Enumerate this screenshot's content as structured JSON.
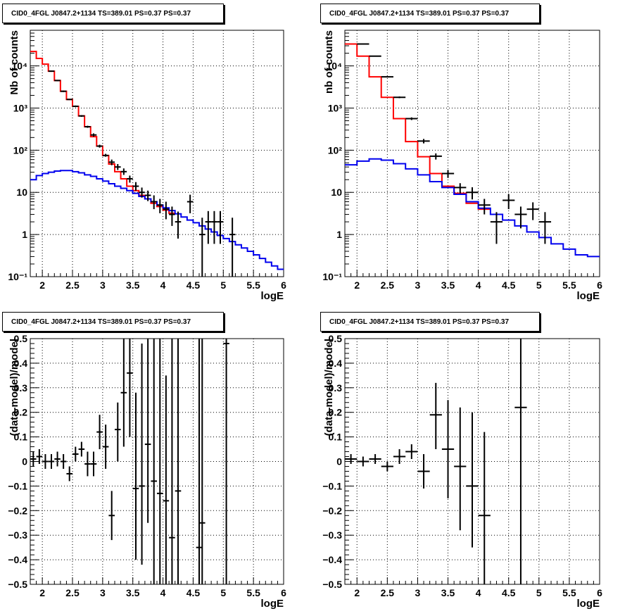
{
  "chart_data": [
    {
      "type": "histogram-step-log",
      "title": "CID0_4FGL J0847.2+1134 TS=389.01 PS=0.37 PS=0.37",
      "xlabel": "logE",
      "ylabel": "Nb of counts",
      "xlim": [
        1.8,
        6
      ],
      "ylim": [
        0.1,
        70000
      ],
      "yscale": "log",
      "grid": true,
      "x_ticks": [
        2,
        2.5,
        3,
        3.5,
        4,
        4.5,
        5,
        5.5,
        6
      ],
      "x_tick_labels": [
        "2",
        "2.5",
        "3",
        "3.5",
        "4",
        "4.5",
        "5",
        "5.5",
        "6"
      ],
      "y_ticks": [
        0.1,
        1,
        10,
        100,
        1000,
        10000
      ],
      "y_tick_labels": [
        "10⁻¹",
        "1",
        "10",
        "10²",
        "10³",
        "10⁴"
      ],
      "bin_edges": [
        1.8,
        1.9,
        2.0,
        2.1,
        2.2,
        2.3,
        2.4,
        2.5,
        2.6,
        2.7,
        2.8,
        2.9,
        3.0,
        3.1,
        3.2,
        3.3,
        3.4,
        3.5,
        3.6,
        3.7,
        3.8,
        3.9,
        4.0,
        4.1,
        4.2,
        4.3,
        4.4,
        4.5,
        4.6,
        4.7,
        4.8,
        4.9,
        5.0,
        5.1,
        5.2,
        5.3,
        5.4,
        5.5,
        5.6,
        5.7,
        5.8,
        5.9,
        6.0
      ],
      "series": [
        {
          "color": "#ff0000",
          "style": "step",
          "values": [
            22000,
            15000,
            11000,
            7500,
            4500,
            2500,
            1600,
            1100,
            650,
            360,
            210,
            125,
            75,
            47,
            31,
            21,
            14,
            11,
            8.5,
            7,
            5.5,
            4.6,
            3.8,
            3.2
          ]
        },
        {
          "color": "#0000ee",
          "style": "step",
          "values": [
            20,
            25,
            28,
            30,
            32,
            33,
            33,
            31,
            29,
            26,
            24,
            21,
            18.5,
            16,
            14,
            12.5,
            11,
            9.5,
            8,
            7,
            6,
            5,
            4.3,
            3.7,
            3.1,
            2.6,
            2.2,
            1.9,
            1.6,
            1.35,
            1.15,
            0.95,
            0.8,
            0.68,
            0.57,
            0.48,
            0.4,
            0.33,
            0.27,
            0.22,
            0.18,
            0.15
          ]
        },
        {
          "color": "#000000",
          "style": "points",
          "x": [
            2.15,
            2.25,
            2.35,
            2.45,
            2.55,
            2.65,
            2.75,
            2.85,
            2.95,
            3.05,
            3.15,
            3.25,
            3.35,
            3.45,
            3.55,
            3.65,
            3.75,
            3.85,
            3.95,
            4.05,
            4.15,
            4.25,
            4.45,
            4.65,
            4.75,
            4.85,
            4.95,
            5.15
          ],
          "y": [
            7500,
            4500,
            2500,
            1600,
            1100,
            650,
            360,
            230,
            125,
            75,
            52,
            40,
            31,
            21,
            14,
            10,
            8.5,
            6,
            5,
            4,
            3,
            2,
            6,
            1,
            2,
            2,
            2,
            1
          ],
          "ylow": [
            7300,
            4350,
            2400,
            1550,
            1050,
            620,
            340,
            210,
            115,
            70,
            44,
            34,
            26,
            17,
            11,
            7.5,
            6.2,
            4,
            3.2,
            2.3,
            1.6,
            0.8,
            3.2,
            0.1,
            0.6,
            0.6,
            0.6,
            0.1
          ],
          "yhigh": [
            7700,
            4650,
            2600,
            1650,
            1150,
            680,
            380,
            250,
            135,
            82,
            60,
            47,
            37,
            25,
            17.5,
            13,
            11,
            8.5,
            7,
            6,
            4.6,
            3.5,
            8.8,
            2.5,
            3.6,
            3.6,
            3.6,
            2.5
          ]
        }
      ]
    },
    {
      "type": "histogram-step-log",
      "title": "CID0_4FGL J0847.2+1134 TS=389.01 PS=0.37 PS=0.37",
      "xlabel": "logE",
      "ylabel": "nb of counts",
      "xlim": [
        1.8,
        6
      ],
      "ylim": [
        0.1,
        70000
      ],
      "yscale": "log",
      "grid": true,
      "x_ticks": [
        2,
        2.5,
        3,
        3.5,
        4,
        4.5,
        5,
        5.5,
        6
      ],
      "x_tick_labels": [
        "2",
        "2.5",
        "3",
        "3.5",
        "4",
        "4.5",
        "5",
        "5.5",
        "6"
      ],
      "y_ticks": [
        0.1,
        1,
        10,
        100,
        1000,
        10000
      ],
      "y_tick_labels": [
        "10⁻¹",
        "1",
        "10",
        "10²",
        "10³",
        "10⁴"
      ],
      "bin_edges": [
        1.8,
        2.0,
        2.2,
        2.4,
        2.6,
        2.8,
        3.0,
        3.2,
        3.4,
        3.6,
        3.8,
        4.0,
        4.2,
        4.4,
        4.6,
        4.8,
        5.0,
        5.2,
        5.4,
        5.6,
        5.8,
        6.0
      ],
      "series": [
        {
          "color": "#ff0000",
          "style": "step",
          "values": [
            33000,
            17000,
            5500,
            1800,
            560,
            160,
            70,
            28,
            14,
            9.5,
            5.5,
            4
          ]
        },
        {
          "color": "#0000ee",
          "style": "step",
          "values": [
            45,
            55,
            62,
            58,
            48,
            36,
            26,
            18,
            13,
            9,
            6,
            4.2,
            3,
            2.2,
            1.6,
            1.15,
            0.85,
            0.6,
            0.45,
            0.33,
            0.3
          ]
        },
        {
          "color": "#000000",
          "style": "points",
          "x": [
            2.1,
            2.3,
            2.5,
            2.7,
            2.9,
            3.1,
            3.3,
            3.5,
            3.7,
            3.9,
            4.1,
            4.3,
            4.5,
            4.7,
            4.9,
            5.1
          ],
          "y": [
            33000,
            17000,
            5500,
            1800,
            560,
            165,
            72,
            28,
            13,
            10,
            5,
            2,
            6.5,
            3,
            4,
            2
          ],
          "ylow": [
            32500,
            16700,
            5350,
            1720,
            520,
            145,
            60,
            22,
            9.5,
            6.8,
            3,
            0.6,
            4,
            1.4,
            2.2,
            0.6
          ],
          "yhigh": [
            33500,
            17300,
            5650,
            1880,
            600,
            185,
            84,
            34,
            16.5,
            13.2,
            7,
            3.4,
            9,
            4.6,
            5.8,
            3.4
          ]
        }
      ]
    },
    {
      "type": "scatter-errorbars",
      "title": "CID0_4FGL J0847.2+1134 TS=389.01 PS=0.37 PS=0.37",
      "xlabel": "logE",
      "ylabel": "(data-model)/model",
      "xlim": [
        1.8,
        6
      ],
      "ylim": [
        -0.5,
        0.5
      ],
      "grid": true,
      "x_ticks": [
        2,
        2.5,
        3,
        3.5,
        4,
        4.5,
        5,
        5.5,
        6
      ],
      "x_tick_labels": [
        "2",
        "2.5",
        "3",
        "3.5",
        "4",
        "4.5",
        "5",
        "5.5",
        "6"
      ],
      "y_ticks": [
        -0.5,
        -0.4,
        -0.3,
        -0.2,
        -0.1,
        0,
        0.1,
        0.2,
        0.3,
        0.4,
        0.5
      ],
      "y_tick_labels": [
        "−0.5",
        "−0.4",
        "−0.3",
        "−0.2",
        "−0.1",
        "0",
        "0.1",
        "0.2",
        "0.3",
        "0.4",
        "0.5"
      ],
      "series": [
        {
          "color": "#000000",
          "style": "points",
          "x": [
            1.85,
            1.95,
            2.05,
            2.15,
            2.25,
            2.35,
            2.45,
            2.55,
            2.65,
            2.75,
            2.85,
            2.95,
            3.05,
            3.15,
            3.25,
            3.35,
            3.45,
            3.55,
            3.65,
            3.75,
            3.85,
            3.95,
            4.05,
            4.15,
            4.25,
            4.6,
            4.65,
            5.05
          ],
          "y": [
            0.01,
            0.02,
            0.0,
            0.0,
            0.01,
            0.0,
            -0.05,
            0.03,
            0.05,
            -0.01,
            -0.01,
            0.12,
            0.06,
            -0.22,
            0.13,
            0.28,
            0.36,
            -0.11,
            -0.1,
            0.07,
            -0.08,
            -0.13,
            -0.16,
            -0.31,
            -0.12,
            -0.35,
            -0.25,
            0.48
          ],
          "ylow": [
            -0.02,
            -0.01,
            -0.03,
            -0.03,
            -0.02,
            -0.03,
            -0.08,
            0.0,
            0.02,
            -0.06,
            -0.06,
            0.05,
            -0.03,
            -0.32,
            0.0,
            0.06,
            0.1,
            -0.4,
            -0.42,
            -0.25,
            -0.5,
            -0.5,
            -0.5,
            -0.5,
            -0.5,
            -0.5,
            -0.5,
            -0.5
          ],
          "yhigh": [
            0.04,
            0.05,
            0.03,
            0.03,
            0.04,
            0.03,
            -0.02,
            0.06,
            0.08,
            0.04,
            0.04,
            0.19,
            0.15,
            -0.12,
            0.24,
            0.5,
            0.5,
            0.28,
            0.48,
            0.5,
            0.5,
            0.5,
            0.35,
            0.5,
            0.5,
            0.5,
            0.5,
            0.5
          ]
        }
      ]
    },
    {
      "type": "scatter-errorbars",
      "title": "CID0_4FGL J0847.2+1134 TS=389.01 PS=0.37 PS=0.37",
      "xlabel": "logE",
      "ylabel": "(data-model)/model",
      "xlim": [
        1.8,
        6
      ],
      "ylim": [
        -0.5,
        0.5
      ],
      "grid": true,
      "x_ticks": [
        2,
        2.5,
        3,
        3.5,
        4,
        4.5,
        5,
        5.5,
        6
      ],
      "x_tick_labels": [
        "2",
        "2.5",
        "3",
        "3.5",
        "4",
        "4.5",
        "5",
        "5.5",
        "6"
      ],
      "y_ticks": [
        -0.5,
        -0.4,
        -0.3,
        -0.2,
        -0.1,
        0,
        0.1,
        0.2,
        0.3,
        0.4,
        0.5
      ],
      "y_tick_labels": [
        "−0.5",
        "−0.4",
        "−0.3",
        "−0.2",
        "−0.1",
        "0",
        "0.1",
        "0.2",
        "0.3",
        "0.4",
        "0.5"
      ],
      "series": [
        {
          "color": "#000000",
          "style": "points",
          "x": [
            1.9,
            2.1,
            2.3,
            2.5,
            2.7,
            2.9,
            3.1,
            3.3,
            3.5,
            3.7,
            3.9,
            4.1,
            4.7
          ],
          "y": [
            0.01,
            0.0,
            0.01,
            -0.02,
            0.02,
            0.04,
            -0.04,
            0.19,
            0.05,
            -0.02,
            -0.1,
            -0.22,
            0.22
          ],
          "ylow": [
            -0.01,
            -0.02,
            -0.01,
            -0.04,
            -0.01,
            0.01,
            -0.11,
            0.05,
            -0.15,
            -0.28,
            -0.35,
            -0.5,
            -0.5
          ],
          "yhigh": [
            0.03,
            0.02,
            0.03,
            0.0,
            0.05,
            0.07,
            0.03,
            0.32,
            0.25,
            0.22,
            0.2,
            0.12,
            0.5
          ]
        }
      ]
    }
  ]
}
